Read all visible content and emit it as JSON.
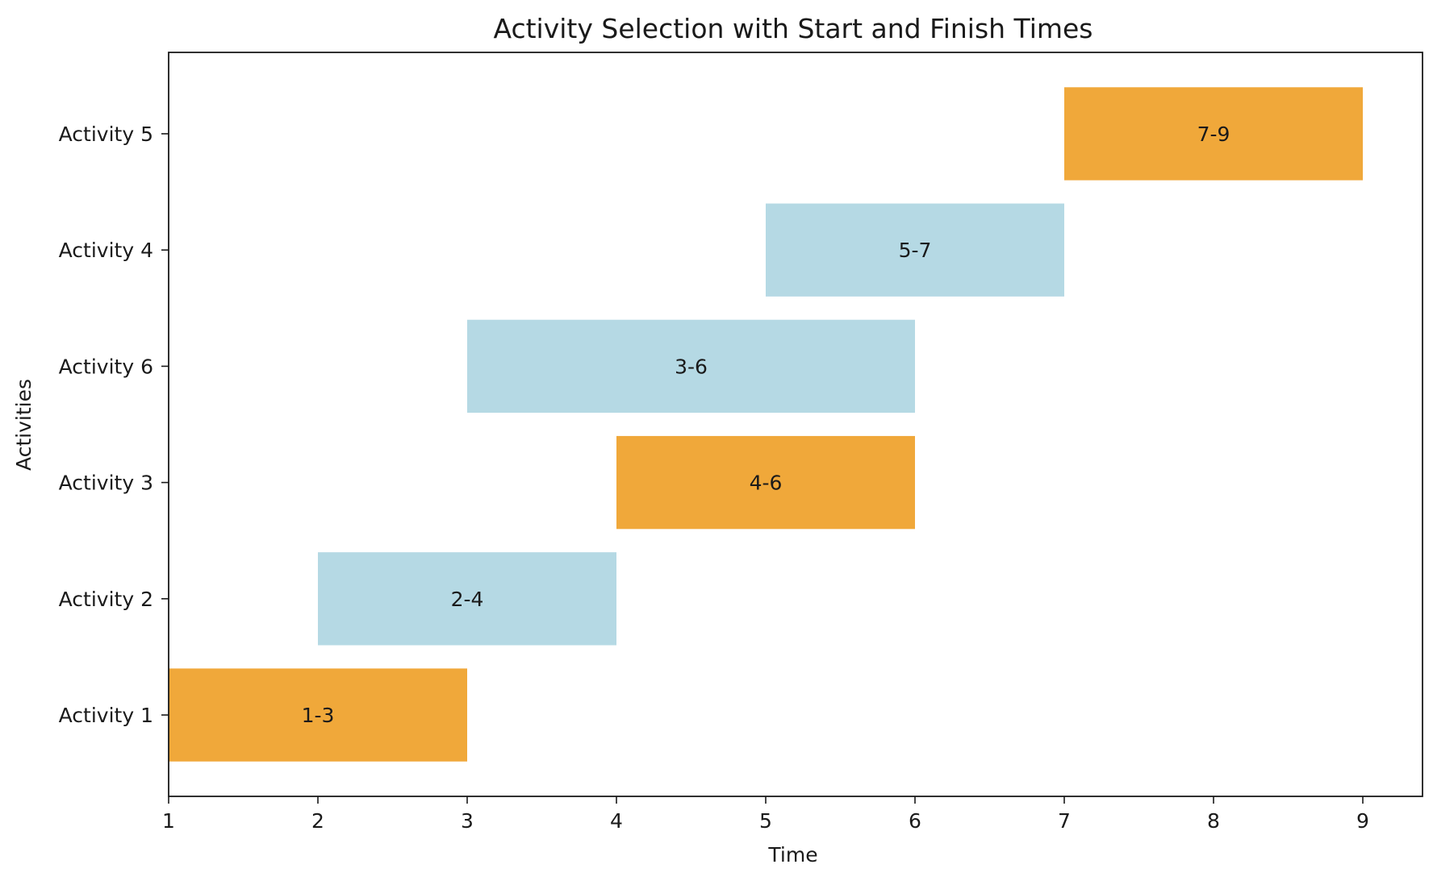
{
  "chart_data": {
    "type": "bar",
    "orientation": "horizontal",
    "title": "Activity Selection with Start and Finish Times",
    "xlabel": "Time",
    "ylabel": "Activities",
    "xlim": [
      1,
      9.4
    ],
    "x_ticks": [
      1,
      2,
      3,
      4,
      5,
      6,
      7,
      8,
      9
    ],
    "grid": false,
    "colors": {
      "selected": "#f0a83a",
      "not_selected": "#b5d9e4"
    },
    "activities": [
      {
        "label": "Activity 1",
        "start": 1,
        "finish": 3,
        "bar_label": "1-3",
        "selected": true
      },
      {
        "label": "Activity 2",
        "start": 2,
        "finish": 4,
        "bar_label": "2-4",
        "selected": false
      },
      {
        "label": "Activity 3",
        "start": 4,
        "finish": 6,
        "bar_label": "4-6",
        "selected": true
      },
      {
        "label": "Activity 6",
        "start": 3,
        "finish": 6,
        "bar_label": "3-6",
        "selected": false
      },
      {
        "label": "Activity 4",
        "start": 5,
        "finish": 7,
        "bar_label": "5-7",
        "selected": false
      },
      {
        "label": "Activity 5",
        "start": 7,
        "finish": 9,
        "bar_label": "7-9",
        "selected": true
      }
    ]
  }
}
